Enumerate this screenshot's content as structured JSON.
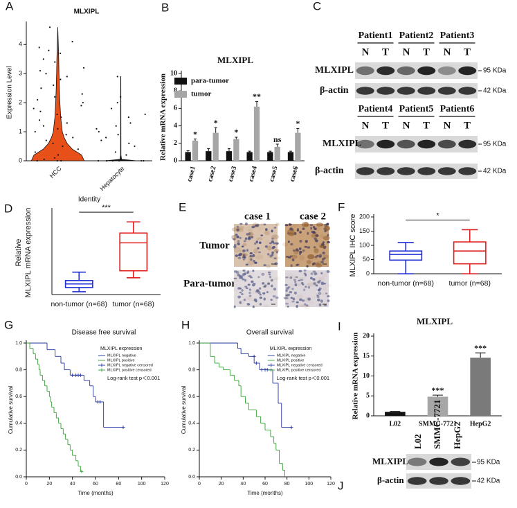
{
  "panels": [
    "A",
    "B",
    "C",
    "D",
    "E",
    "F",
    "G",
    "H",
    "I",
    "J"
  ],
  "chart_data": [
    {
      "type": "violin",
      "title": "MLXIPL",
      "ylabel": "Expression Level",
      "xlabel": "Identity",
      "categories": [
        "HCC",
        "Hepatocyte"
      ],
      "ylim": [
        0,
        4.7
      ],
      "yticks": [
        0,
        1,
        2,
        3,
        4
      ],
      "violins": [
        {
          "color": "#e8501a",
          "levels": [
            0,
            0.2,
            0.4,
            0.6,
            0.8,
            1.0,
            1.5,
            2.0,
            2.5,
            3.0,
            3.5,
            4.0,
            4.6
          ],
          "density": [
            1.0,
            0.9,
            0.55,
            0.35,
            0.24,
            0.17,
            0.11,
            0.08,
            0.06,
            0.045,
            0.035,
            0.02,
            0.0
          ],
          "points": [
            0,
            0,
            0,
            0.05,
            0.1,
            0.2,
            0.3,
            0.4,
            0.5,
            0.6,
            0.7,
            0.8,
            0.9,
            1.0,
            1.1,
            1.2,
            1.3,
            1.4,
            1.5,
            1.6,
            1.7,
            1.8,
            1.9,
            2.0,
            2.1,
            2.2,
            2.3,
            2.5,
            2.6,
            2.8,
            2.9,
            3.0,
            3.1,
            3.2,
            3.4,
            3.5,
            3.7,
            3.8,
            3.9,
            4.1,
            4.6
          ]
        },
        {
          "color": "#111111",
          "levels": [
            0,
            0.05,
            0.2,
            2.9
          ],
          "density": [
            0.6,
            0.03,
            0.008,
            0.004
          ],
          "points": [
            0,
            0,
            0,
            0,
            0,
            0,
            0,
            0.2,
            0.3,
            0.5,
            0.6,
            0.7,
            0.8,
            0.9,
            1.0,
            1.1,
            1.2,
            1.3,
            1.5,
            1.6,
            1.8,
            2.0,
            2.2,
            2.9
          ]
        }
      ]
    },
    {
      "type": "bar",
      "title": "MLXIPL",
      "ylabel": "Relative mRNA expression",
      "categories": [
        "case1",
        "case2",
        "case3",
        "case4",
        "case5",
        "case6"
      ],
      "ylim": [
        0,
        10
      ],
      "yticks": [
        0,
        2,
        4,
        6,
        8,
        10
      ],
      "series": [
        {
          "name": "para-tumor",
          "color": "#111111",
          "values": [
            1.0,
            1.1,
            1.1,
            1.0,
            1.0,
            1.0
          ],
          "errors": [
            0.15,
            0.3,
            0.3,
            0.1,
            0.1,
            0.1
          ]
        },
        {
          "name": "tumor",
          "color": "#a6a6a6",
          "values": [
            2.3,
            3.2,
            2.5,
            6.2,
            1.6,
            3.2
          ],
          "errors": [
            0.2,
            0.6,
            0.2,
            0.6,
            0.3,
            0.5
          ]
        }
      ],
      "annotations": [
        "*",
        "*",
        "*",
        "**",
        "ns",
        "*"
      ]
    },
    {
      "type": "box",
      "ylabel": [
        "Relative",
        "MLXIPL mRNA expression"
      ],
      "categories": [
        "non-tumor (n=68)",
        "tumor (n=68)"
      ],
      "ylim": [
        0,
        3
      ],
      "yticks": [],
      "boxes": [
        {
          "color": "#1f2fd6",
          "min": 0.1,
          "q1": 0.25,
          "median": 0.38,
          "q3": 0.5,
          "max": 0.8
        },
        {
          "color": "#e02020",
          "min": 0.6,
          "q1": 0.85,
          "median": 1.85,
          "q3": 2.2,
          "max": 2.6
        }
      ],
      "significance": "***"
    },
    {
      "type": "box",
      "ylabel": [
        "MLXIPL IHC score"
      ],
      "categories": [
        "non-tumor (n=68)",
        "tumor (n=68)"
      ],
      "ylim": [
        0,
        200
      ],
      "yticks": [
        0,
        50,
        100,
        150,
        200
      ],
      "boxes": [
        {
          "color": "#1f2fd6",
          "min": 0,
          "q1": 48,
          "median": 68,
          "q3": 80,
          "max": 110
        },
        {
          "color": "#e02020",
          "min": 0,
          "q1": 35,
          "median": 80,
          "q3": 112,
          "max": 155
        }
      ],
      "significance": "*"
    },
    {
      "type": "survival",
      "title": "Disease free survival",
      "xlabel": "Time (months)",
      "ylabel": "Cumulative survival",
      "xlim": [
        0,
        120
      ],
      "xticks": [
        0,
        20,
        40,
        60,
        80,
        100,
        120
      ],
      "ylim": [
        0,
        1
      ],
      "yticks": [
        {
          "value": 0,
          "label": "0.0"
        },
        0.2,
        0.4,
        0.6,
        0.8,
        {
          "value": 1,
          "label": "1.0"
        }
      ],
      "legend_title": "MLXIPL expression",
      "annotation": "Log-rank test p＜0.001",
      "series": [
        {
          "name": "MLXIPL negative",
          "color": "#2030a0",
          "style": "line",
          "x": [
            0,
            18,
            25,
            30,
            33,
            38,
            50,
            55,
            58,
            60,
            67,
            84
          ],
          "values": [
            1.0,
            0.95,
            0.9,
            0.85,
            0.8,
            0.76,
            0.72,
            0.68,
            0.6,
            0.56,
            0.37,
            0.37
          ]
        },
        {
          "name": "MLXIPL positive",
          "color": "#30a030",
          "style": "line",
          "x": [
            0,
            3,
            6,
            8,
            10,
            11,
            12,
            14,
            16,
            18,
            20,
            21,
            22,
            24,
            26,
            28,
            30,
            32,
            34,
            36,
            38,
            40,
            43,
            45,
            47,
            48
          ],
          "values": [
            1.0,
            0.96,
            0.92,
            0.88,
            0.84,
            0.8,
            0.76,
            0.72,
            0.68,
            0.64,
            0.6,
            0.56,
            0.52,
            0.48,
            0.44,
            0.4,
            0.36,
            0.32,
            0.28,
            0.24,
            0.2,
            0.16,
            0.12,
            0.08,
            0.04,
            0.04
          ]
        },
        {
          "name": "MLXIPL negative censored",
          "color": "#2030a0",
          "style": "censored",
          "x": [
            40,
            43,
            45,
            47,
            62,
            64,
            84
          ],
          "values": [
            0.76,
            0.76,
            0.76,
            0.76,
            0.56,
            0.56,
            0.37
          ]
        },
        {
          "name": "MLXIPL positive censored",
          "color": "#30a030",
          "style": "censored",
          "x": [
            48
          ],
          "values": [
            0.04
          ]
        }
      ]
    },
    {
      "type": "survival",
      "title": "Overall survival",
      "xlabel": "Time (months)",
      "ylabel": "Cumulative survival",
      "xlim": [
        0,
        120
      ],
      "xticks": [
        0,
        20,
        40,
        60,
        80,
        100,
        120
      ],
      "ylim": [
        0,
        1
      ],
      "yticks": [
        {
          "value": 0,
          "label": "0.0"
        },
        0.2,
        0.4,
        0.6,
        0.8,
        {
          "value": 1,
          "label": "1.0"
        }
      ],
      "legend_title": "MLXIPL expression",
      "annotation": "Log-rank test p＜0.001",
      "series": [
        {
          "name": "MLXIPL negative",
          "color": "#2030a0",
          "style": "line",
          "x": [
            0,
            35,
            38,
            45,
            50,
            55,
            58,
            67,
            72,
            75,
            84
          ],
          "values": [
            1.0,
            0.96,
            0.92,
            0.9,
            0.85,
            0.8,
            0.8,
            0.7,
            0.55,
            0.37,
            0.37
          ]
        },
        {
          "name": "MLXIPL positive",
          "color": "#30a030",
          "style": "line",
          "x": [
            0,
            10,
            14,
            18,
            22,
            28,
            32,
            36,
            38,
            42,
            45,
            52,
            56,
            60,
            65,
            68,
            70,
            73,
            76,
            78
          ],
          "values": [
            1.0,
            0.9,
            0.85,
            0.82,
            0.8,
            0.76,
            0.72,
            0.68,
            0.6,
            0.55,
            0.5,
            0.45,
            0.4,
            0.35,
            0.3,
            0.25,
            0.2,
            0.1,
            0.05,
            0.0
          ]
        },
        {
          "name": "MLXIPL negative censored",
          "color": "#2030a0",
          "style": "censored",
          "x": [
            50,
            52,
            57,
            60,
            62,
            84
          ],
          "values": [
            0.9,
            0.85,
            0.8,
            0.8,
            0.8,
            0.37
          ]
        },
        {
          "name": "MLXIPL positive censored",
          "color": "#30a030",
          "style": "censored",
          "x": [],
          "values": []
        }
      ]
    },
    {
      "type": "bar",
      "title": "MLXIPL",
      "ylabel": "Relative mRNA expression",
      "categories": [
        "L02",
        "SMMC-7721",
        "HepG2"
      ],
      "ylim": [
        0,
        20
      ],
      "yticks": [
        0,
        5,
        10,
        15,
        20
      ],
      "values": [
        1.0,
        4.8,
        14.6
      ],
      "errors": [
        0.1,
        0.4,
        1.2
      ],
      "colors": [
        "#111111",
        "#a6a6a6",
        "#7a7a7a"
      ],
      "annotations": [
        null,
        "***",
        "***"
      ]
    }
  ],
  "western_blot_C": {
    "patients": [
      "Patient1",
      "Patient2",
      "Patient3",
      "Patient4",
      "Patient5",
      "Patient6"
    ],
    "lanes": [
      "N",
      "T"
    ],
    "proteins": [
      "MLXIPL",
      "β-actin"
    ],
    "sizes": [
      "95 KDa",
      "42 KDa"
    ]
  },
  "ihc_E": {
    "columns": [
      "case 1",
      "case 2"
    ],
    "rows": [
      "Tumor",
      "Para-tumor"
    ]
  },
  "western_blot_J": {
    "cell_lines": [
      "L02",
      "SMMC-7721",
      "HepG2"
    ],
    "proteins": [
      "MLXIPL",
      "β-actin"
    ],
    "sizes": [
      "95 KDa",
      "42 KDa"
    ]
  }
}
